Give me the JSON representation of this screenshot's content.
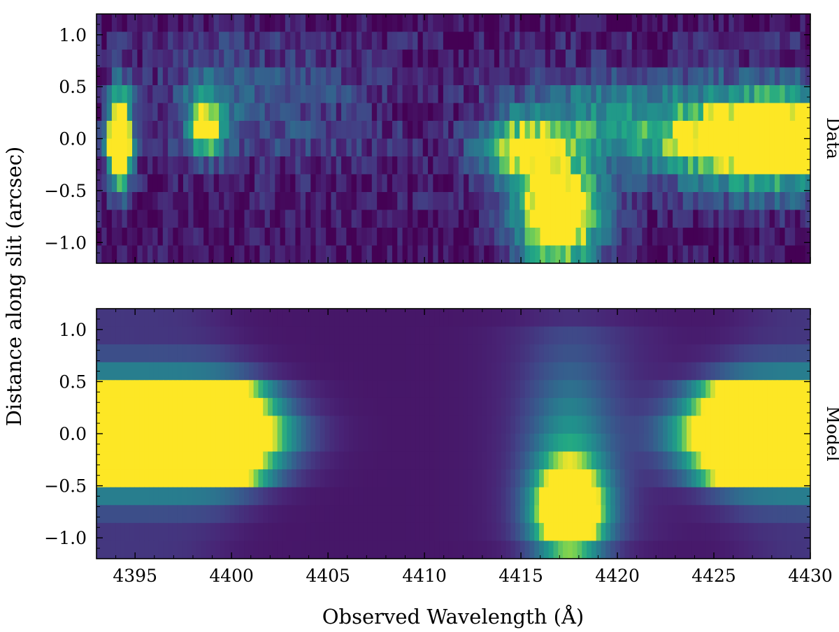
{
  "chart_data": [
    {
      "type": "heatmap",
      "panel_label": "Data",
      "xlim": [
        4393,
        4430
      ],
      "ylim": [
        -1.2,
        1.2
      ],
      "x_ticks": [
        4395,
        4400,
        4405,
        4410,
        4415,
        4420,
        4425,
        4430
      ],
      "y_ticks": [
        -1.0,
        -0.5,
        0.0,
        0.5,
        1.0
      ],
      "y_tick_labels": [
        "−1.0",
        "−0.5",
        "0.0",
        "0.5",
        "1.0"
      ],
      "x_tick_labels_shown": false,
      "colormap": "viridis",
      "features": [
        {
          "x": 4394.2,
          "y": 0.0,
          "sx": 0.45,
          "sy": 0.32,
          "amp": 1.6
        },
        {
          "x": 4398.6,
          "y": 0.1,
          "sx": 0.5,
          "sy": 0.15,
          "amp": 0.75
        },
        {
          "x": 4398.8,
          "y": 0.2,
          "sx": 1.0,
          "sy": 0.35,
          "amp": 0.35
        },
        {
          "x": 4417.0,
          "y": -0.75,
          "sx": 1.6,
          "sy": 0.38,
          "amp": 1.3
        },
        {
          "x": 4415.0,
          "y": -0.1,
          "sx": 1.6,
          "sy": 0.25,
          "amp": 0.75
        },
        {
          "x": 4419.0,
          "y": 0.2,
          "sx": 3.0,
          "sy": 0.3,
          "amp": 0.45
        },
        {
          "x": 4428.0,
          "y": 0.0,
          "sx": 4.0,
          "sy": 0.32,
          "amp": 1.5
        },
        {
          "x": 4402.0,
          "y": 0.35,
          "sx": 4.0,
          "sy": 0.4,
          "amp": 0.25
        }
      ]
    },
    {
      "type": "heatmap",
      "panel_label": "Model",
      "xlim": [
        4393,
        4430
      ],
      "ylim": [
        -1.2,
        1.2
      ],
      "x_ticks": [
        4395,
        4400,
        4405,
        4410,
        4415,
        4420,
        4425,
        4430
      ],
      "x_tick_labels": [
        "4395",
        "4400",
        "4405",
        "4410",
        "4415",
        "4420",
        "4425",
        "4430"
      ],
      "y_ticks": [
        -1.0,
        -0.5,
        0.0,
        0.5,
        1.0
      ],
      "y_tick_labels": [
        "−1.0",
        "−0.5",
        "0.0",
        "0.5",
        "1.0"
      ],
      "colormap": "viridis",
      "continuum_bands": {
        "left_edge": 4403.0,
        "right_edge": 4423.0,
        "core_halfwidth": 0.5
      },
      "features": [
        {
          "x": 4417.5,
          "y": -0.75,
          "sx": 1.3,
          "sy": 0.3,
          "amp": 1.3
        },
        {
          "x": 4417.5,
          "y": -0.2,
          "sx": 1.5,
          "sy": 0.6,
          "amp": 0.45
        }
      ]
    }
  ],
  "labels": {
    "xlabel": "Observed Wavelength  (Å)",
    "ylabel": "Distance along slit  (arcsec)"
  }
}
